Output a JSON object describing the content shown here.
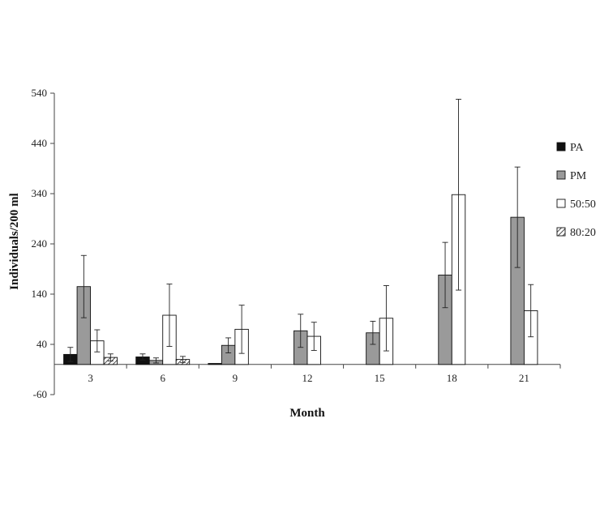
{
  "chart_data": {
    "type": "bar",
    "xlabel": "Month",
    "ylabel": "Individuals/200 ml",
    "ylim": [
      -60,
      540
    ],
    "yticks": [
      -60,
      40,
      140,
      240,
      340,
      440,
      540
    ],
    "categories": [
      "3",
      "6",
      "9",
      "12",
      "15",
      "18",
      "21"
    ],
    "legend_position": "right",
    "series": [
      {
        "name": "PA",
        "fill": "#111111",
        "pattern": "solid",
        "values": [
          20,
          15,
          2,
          0,
          0,
          0,
          0
        ],
        "errors": [
          14,
          6,
          0,
          0,
          0,
          0,
          0
        ]
      },
      {
        "name": "PM",
        "fill": "#9a9a9a",
        "pattern": "solid",
        "values": [
          155,
          8,
          38,
          67,
          63,
          178,
          293
        ],
        "errors": [
          62,
          5,
          15,
          33,
          23,
          65,
          100
        ]
      },
      {
        "name": "50:50",
        "fill": "#ffffff",
        "pattern": "solid",
        "values": [
          47,
          98,
          70,
          56,
          92,
          338,
          107
        ],
        "errors": [
          22,
          62,
          48,
          28,
          65,
          190,
          52
        ]
      },
      {
        "name": "80:20",
        "fill": "#ffffff",
        "pattern": "hatch",
        "values": [
          14,
          10,
          0,
          0,
          0,
          0,
          0
        ],
        "errors": [
          7,
          6,
          0,
          0,
          0,
          0,
          0
        ]
      }
    ]
  }
}
